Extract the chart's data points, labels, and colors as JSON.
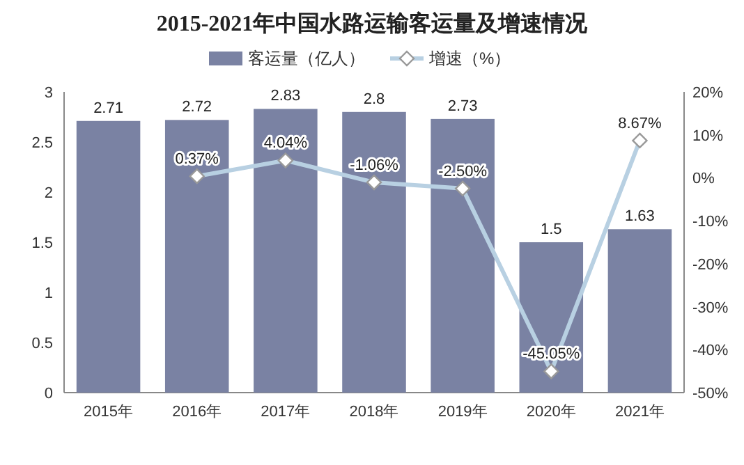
{
  "chart_data": {
    "type": "bar",
    "title": "2015-2021年中国水路运输客运量及增速情况",
    "categories": [
      "2015年",
      "2016年",
      "2017年",
      "2018年",
      "2019年",
      "2020年",
      "2021年"
    ],
    "ylim": [
      0,
      3
    ],
    "yticks": [
      0,
      0.5,
      1,
      1.5,
      2,
      2.5,
      3
    ],
    "y2lim": [
      -50,
      20
    ],
    "y2ticks": [
      {
        "value": -50,
        "label": "-50%"
      },
      {
        "value": -40,
        "label": "-40%"
      },
      {
        "value": -30,
        "label": "-30%"
      },
      {
        "value": -20,
        "label": "-20%"
      },
      {
        "value": -10,
        "label": "-10%"
      },
      {
        "value": 0,
        "label": "0%"
      },
      {
        "value": 10,
        "label": "10%"
      },
      {
        "value": 20,
        "label": "20%"
      }
    ],
    "legend": "top",
    "series": [
      {
        "name": "客运量（亿人）",
        "color": "#7a82a3",
        "values": [
          2.71,
          2.72,
          2.83,
          2.8,
          2.73,
          1.5,
          1.63
        ],
        "value_labels": [
          "2.71",
          "2.72",
          "2.83",
          "2.8",
          "2.73",
          "1.5",
          "1.63"
        ]
      },
      {
        "name": "增速（%）",
        "type": "line",
        "axis": "y2",
        "color": "#b8d0e2",
        "marker": "diamond",
        "values": [
          null,
          0.37,
          4.04,
          -1.06,
          -2.5,
          -45.05,
          8.67
        ],
        "value_labels": [
          null,
          "0.37%",
          "4.04%",
          "-1.06%",
          "-2.50%",
          "-45.05%",
          "8.67%"
        ]
      }
    ]
  }
}
